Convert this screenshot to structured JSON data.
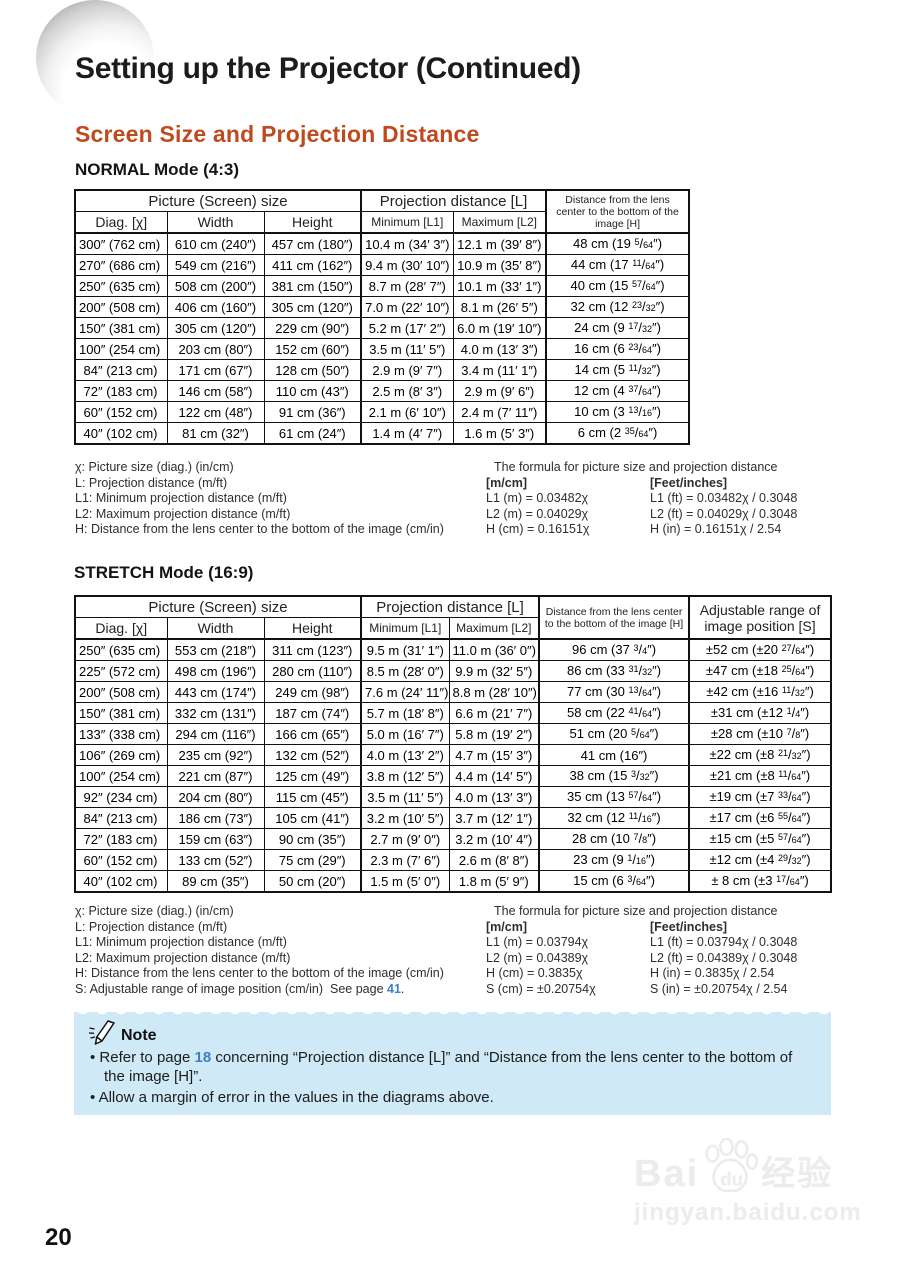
{
  "page": {
    "title": "Setting up the Projector (Continued)",
    "section_heading": "Screen Size and Projection Distance",
    "page_number": "20"
  },
  "normal": {
    "heading": "NORMAL Mode (4:3)",
    "table": {
      "group_picture": "Picture (Screen) size",
      "group_projection": "Projection distance [L]",
      "h_header": "Distance from the lens center to the bottom of the image [H]",
      "col_headers": [
        "Diag. [χ]",
        "Width",
        "Height",
        "Minimum [L1]",
        "Maximum [L2]"
      ],
      "rows": [
        [
          "300″ (762 cm)",
          "610 cm (240″)",
          "457 cm (180″)",
          "10.4 m (34′ 3″)",
          "12.1 m (39′ 8″)",
          "48 cm (19 5/64″)"
        ],
        [
          "270″ (686 cm)",
          "549 cm (216″)",
          "411 cm (162″)",
          "9.4 m (30′ 10″)",
          "10.9 m (35′ 8″)",
          "44 cm (17 11/64″)"
        ],
        [
          "250″ (635 cm)",
          "508 cm (200″)",
          "381 cm (150″)",
          "8.7 m (28′ 7″)",
          "10.1 m (33′ 1″)",
          "40 cm (15 57/64″)"
        ],
        [
          "200″ (508 cm)",
          "406 cm (160″)",
          "305 cm (120″)",
          "7.0 m (22′ 10″)",
          "8.1 m (26′ 5″)",
          "32 cm (12 23/32″)"
        ],
        [
          "150″ (381 cm)",
          "305 cm (120″)",
          "229 cm (90″)",
          "5.2 m (17′ 2″)",
          "6.0 m (19′ 10″)",
          "24 cm (9 17/32″)"
        ],
        [
          "100″ (254 cm)",
          "203 cm (80″)",
          "152 cm (60″)",
          "3.5 m (11′ 5″)",
          "4.0 m (13′ 3″)",
          "16 cm (6 23/64″)"
        ],
        [
          "84″ (213 cm)",
          "171 cm (67″)",
          "128 cm (50″)",
          "2.9 m (9′ 7″)",
          "3.4 m (11′ 1″)",
          "14 cm (5 11/32″)"
        ],
        [
          "72″ (183 cm)",
          "146 cm (58″)",
          "110 cm (43″)",
          "2.5 m (8′ 3″)",
          "2.9 m (9′ 6″)",
          "12 cm (4 37/64″)"
        ],
        [
          "60″ (152 cm)",
          "122 cm (48″)",
          "91 cm (36″)",
          "2.1 m (6′ 10″)",
          "2.4 m (7′ 11″)",
          "10 cm (3 13/16″)"
        ],
        [
          "40″ (102 cm)",
          "81 cm (32″)",
          "61 cm (24″)",
          "1.4 m (4′ 7″)",
          "1.6 m (5′ 3″)",
          "6 cm (2 35/64″)"
        ]
      ]
    },
    "legend": [
      "χ: Picture size (diag.) (in/cm)",
      "L: Projection distance (m/ft)",
      "L1: Minimum projection distance (m/ft)",
      "L2: Maximum projection distance (m/ft)",
      "H: Distance from the lens center to the bottom of the image (cm/in)"
    ],
    "formula": {
      "title": "The formula for picture size and projection distance",
      "col1": "[m/cm]",
      "col2": "[Feet/inches]",
      "rows": [
        [
          "L1 (m) = 0.03482χ",
          "L1 (ft) = 0.03482χ / 0.3048"
        ],
        [
          "L2 (m) = 0.04029χ",
          "L2 (ft) = 0.04029χ / 0.3048"
        ],
        [
          "H (cm) = 0.16151χ",
          "H (in) = 0.16151χ / 2.54"
        ]
      ]
    }
  },
  "stretch": {
    "heading": "STRETCH Mode (16:9)",
    "table": {
      "group_picture": "Picture (Screen) size",
      "group_projection": "Projection distance [L]",
      "h_header": "Distance from the lens center to the bottom of the image [H]",
      "s_header": "Adjustable range of image position [S]",
      "col_headers": [
        "Diag. [χ]",
        "Width",
        "Height",
        "Minimum [L1]",
        "Maximum [L2]"
      ],
      "rows": [
        [
          "250″ (635 cm)",
          "553 cm (218″)",
          "311 cm (123″)",
          "9.5 m (31′ 1″)",
          "11.0 m (36′ 0″)",
          "96 cm (37 3/4″)",
          "±52 cm (±20 27/64″)"
        ],
        [
          "225″ (572 cm)",
          "498 cm (196″)",
          "280 cm (110″)",
          "8.5 m (28′ 0″)",
          "9.9 m (32′ 5″)",
          "86 cm (33 31/32″)",
          "±47 cm (±18 25/64″)"
        ],
        [
          "200″ (508 cm)",
          "443 cm (174″)",
          "249 cm (98″)",
          "7.6 m (24′ 11″)",
          "8.8 m (28′ 10″)",
          "77 cm (30 13/64″)",
          "±42 cm (±16 11/32″)"
        ],
        [
          "150″ (381 cm)",
          "332 cm (131″)",
          "187 cm (74″)",
          "5.7 m (18′ 8″)",
          "6.6 m (21′ 7″)",
          "58 cm (22 41/64″)",
          "±31 cm (±12 1/4″)"
        ],
        [
          "133″ (338 cm)",
          "294 cm (116″)",
          "166 cm (65″)",
          "5.0 m (16′ 7″)",
          "5.8 m (19′ 2″)",
          "51 cm (20 5/64″)",
          "±28 cm (±10 7/8″)"
        ],
        [
          "106″ (269 cm)",
          "235 cm (92″)",
          "132 cm (52″)",
          "4.0 m (13′ 2″)",
          "4.7 m (15′ 3″)",
          "41 cm (16″)",
          "±22 cm (±8 21/32″)"
        ],
        [
          "100″ (254 cm)",
          "221 cm (87″)",
          "125 cm (49″)",
          "3.8 m (12′ 5″)",
          "4.4 m (14′ 5″)",
          "38 cm (15 3/32″)",
          "±21 cm (±8 11/64″)"
        ],
        [
          "92″ (234 cm)",
          "204 cm (80″)",
          "115 cm (45″)",
          "3.5 m (11′ 5″)",
          "4.0 m (13′ 3″)",
          "35 cm (13 57/64″)",
          "±19 cm (±7 33/64″)"
        ],
        [
          "84″ (213 cm)",
          "186 cm (73″)",
          "105 cm (41″)",
          "3.2 m (10′ 5″)",
          "3.7 m (12′ 1″)",
          "32 cm (12 11/16″)",
          "±17 cm (±6 55/64″)"
        ],
        [
          "72″ (183 cm)",
          "159 cm (63″)",
          "90 cm (35″)",
          "2.7 m (9′ 0″)",
          "3.2 m (10′ 4″)",
          "28 cm (10 7/8″)",
          "±15 cm (±5 57/64″)"
        ],
        [
          "60″ (152 cm)",
          "133 cm (52″)",
          "75 cm (29″)",
          "2.3 m (7′ 6″)",
          "2.6 m (8′ 8″)",
          "23 cm (9 1/16″)",
          "±12 cm (±4 29/32″)"
        ],
        [
          "40″ (102 cm)",
          "89 cm (35″)",
          "50 cm (20″)",
          "1.5 m (5′ 0″)",
          "1.8 m (5′ 9″)",
          "15 cm (6 3/64″)",
          "± 8 cm (±3 17/64″)"
        ]
      ]
    },
    "legend": [
      "χ: Picture size (diag.) (in/cm)",
      "L: Projection distance (m/ft)",
      "L1: Minimum projection distance (m/ft)",
      "L2: Maximum projection distance (m/ft)",
      "H: Distance from the lens center to the bottom of the image (cm/in)"
    ],
    "legend_s_pre": "S: Adjustable range of image position (cm/in)  See page ",
    "legend_s_link": "41",
    "legend_s_post": ".",
    "formula": {
      "title": "The formula for picture size and projection distance",
      "col1": "[m/cm]",
      "col2": "[Feet/inches]",
      "rows": [
        [
          "L1 (m) = 0.03794χ",
          "L1 (ft) = 0.03794χ / 0.3048"
        ],
        [
          "L2 (m) = 0.04389χ",
          "L2 (ft) = 0.04389χ / 0.3048"
        ],
        [
          "H (cm) = 0.3835χ",
          "H (in) = 0.3835χ / 2.54"
        ],
        [
          "S (cm) = ±0.20754χ",
          "S (in) = ±0.20754χ / 2.54"
        ]
      ]
    }
  },
  "note": {
    "title": "Note",
    "b1_pre": "Refer to page ",
    "b1_link": "18",
    "b1_post": " concerning “Projection distance [L]” and “Distance from the lens center to the bottom of the image [H]”.",
    "b2": "Allow a margin of error in the values in the diagrams above."
  },
  "watermark": {
    "bai": "Bai",
    "du": "du",
    "cn": "经验",
    "url": "jingyan.baidu.com"
  },
  "colors": {
    "section_heading": "#bf4a1e",
    "page_link": "#3d7fc1",
    "note_background": "#cfe9f6"
  }
}
